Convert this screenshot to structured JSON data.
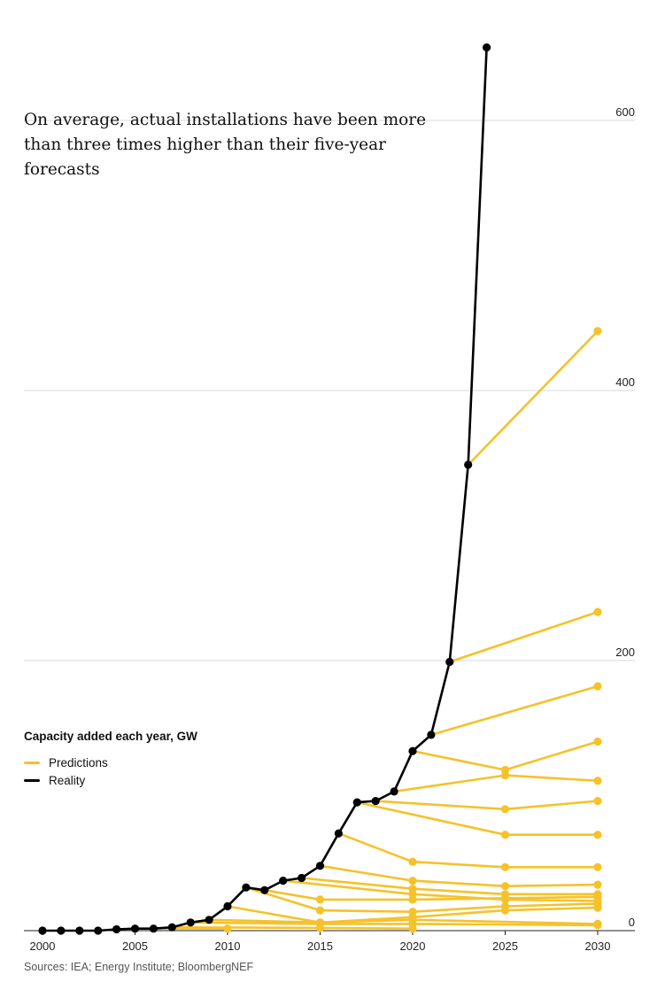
{
  "chart_data": {
    "type": "line",
    "subtitle": "On average, actual installations have been more than three times higher than their five-year forecasts",
    "legend_title": "Capacity added each year, GW",
    "legend": [
      {
        "label": "Predictions",
        "color": "#F5C22B"
      },
      {
        "label": "Reality",
        "color": "#000000"
      }
    ],
    "source": "Sources: IEA; Energy Institute; BloombergNEF",
    "xlim": [
      2000,
      2030
    ],
    "ylim": [
      0,
      600
    ],
    "x_ticks": [
      2000,
      2005,
      2010,
      2015,
      2020,
      2025,
      2030
    ],
    "y_ticks": [
      0,
      200,
      400,
      600
    ],
    "grid": "horizontal",
    "series": [
      {
        "type": "reality",
        "color": "#000000",
        "points": [
          [
            2000,
            0
          ],
          [
            2001,
            0
          ],
          [
            2002,
            0
          ],
          [
            2003,
            0
          ],
          [
            2004,
            1
          ],
          [
            2005,
            1.5
          ],
          [
            2006,
            1.5
          ],
          [
            2007,
            2.5
          ],
          [
            2008,
            6
          ],
          [
            2009,
            8
          ],
          [
            2010,
            18
          ],
          [
            2011,
            32
          ],
          [
            2012,
            30
          ],
          [
            2013,
            37
          ],
          [
            2014,
            39
          ],
          [
            2015,
            48
          ],
          [
            2016,
            72
          ],
          [
            2017,
            95
          ],
          [
            2018,
            96
          ],
          [
            2019,
            103
          ],
          [
            2020,
            133
          ],
          [
            2021,
            145
          ],
          [
            2022,
            199
          ],
          [
            2023,
            345
          ],
          [
            2024,
            654
          ]
        ]
      },
      {
        "type": "prediction",
        "color": "#F5C22B",
        "points": [
          [
            2006,
            1.5
          ],
          [
            2010,
            1.5
          ]
        ]
      },
      {
        "type": "prediction",
        "color": "#F5C22B",
        "points": [
          [
            2007,
            2.5
          ],
          [
            2015,
            2
          ],
          [
            2020,
            1.5
          ]
        ]
      },
      {
        "type": "prediction",
        "color": "#F5C22B",
        "points": [
          [
            2008,
            6
          ],
          [
            2015,
            5
          ],
          [
            2020,
            5
          ],
          [
            2030,
            4
          ]
        ]
      },
      {
        "type": "prediction",
        "color": "#F5C22B",
        "points": [
          [
            2009,
            8
          ],
          [
            2015,
            6
          ],
          [
            2020,
            8
          ],
          [
            2030,
            5
          ]
        ]
      },
      {
        "type": "prediction",
        "color": "#F5C22B",
        "points": [
          [
            2010,
            18
          ],
          [
            2015,
            6
          ],
          [
            2020,
            10
          ],
          [
            2025,
            15
          ],
          [
            2030,
            17
          ]
        ]
      },
      {
        "type": "prediction",
        "color": "#F5C22B",
        "points": [
          [
            2011,
            32
          ],
          [
            2015,
            15
          ],
          [
            2020,
            14
          ],
          [
            2025,
            18
          ],
          [
            2030,
            20
          ]
        ]
      },
      {
        "type": "prediction",
        "color": "#F5C22B",
        "points": [
          [
            2012,
            30
          ],
          [
            2015,
            23
          ],
          [
            2020,
            23
          ],
          [
            2025,
            24
          ],
          [
            2030,
            25
          ]
        ]
      },
      {
        "type": "prediction",
        "color": "#F5C22B",
        "points": [
          [
            2013,
            37
          ],
          [
            2020,
            27
          ],
          [
            2025,
            23
          ],
          [
            2030,
            22
          ]
        ]
      },
      {
        "type": "prediction",
        "color": "#F5C22B",
        "points": [
          [
            2014,
            39
          ],
          [
            2020,
            31
          ],
          [
            2025,
            27
          ],
          [
            2030,
            27
          ]
        ]
      },
      {
        "type": "prediction",
        "color": "#F5C22B",
        "points": [
          [
            2015,
            48
          ],
          [
            2020,
            37
          ],
          [
            2025,
            33
          ],
          [
            2030,
            34
          ]
        ]
      },
      {
        "type": "prediction",
        "color": "#F5C22B",
        "points": [
          [
            2016,
            72
          ],
          [
            2020,
            51
          ],
          [
            2025,
            47
          ],
          [
            2030,
            47
          ]
        ]
      },
      {
        "type": "prediction",
        "color": "#F5C22B",
        "points": [
          [
            2017,
            95
          ],
          [
            2025,
            71
          ],
          [
            2030,
            71
          ]
        ]
      },
      {
        "type": "prediction",
        "color": "#F5C22B",
        "points": [
          [
            2018,
            96
          ],
          [
            2025,
            90
          ],
          [
            2030,
            96
          ]
        ]
      },
      {
        "type": "prediction",
        "color": "#F5C22B",
        "points": [
          [
            2019,
            103
          ],
          [
            2025,
            115
          ],
          [
            2030,
            111
          ]
        ]
      },
      {
        "type": "prediction",
        "color": "#F5C22B",
        "points": [
          [
            2020,
            133
          ],
          [
            2025,
            119
          ],
          [
            2030,
            140
          ]
        ]
      },
      {
        "type": "prediction",
        "color": "#F5C22B",
        "points": [
          [
            2021,
            145
          ],
          [
            2030,
            181
          ]
        ]
      },
      {
        "type": "prediction",
        "color": "#F5C22B",
        "points": [
          [
            2022,
            199
          ],
          [
            2030,
            236
          ]
        ]
      },
      {
        "type": "prediction",
        "color": "#F5C22B",
        "points": [
          [
            2023,
            345
          ],
          [
            2030,
            444
          ]
        ]
      }
    ]
  }
}
